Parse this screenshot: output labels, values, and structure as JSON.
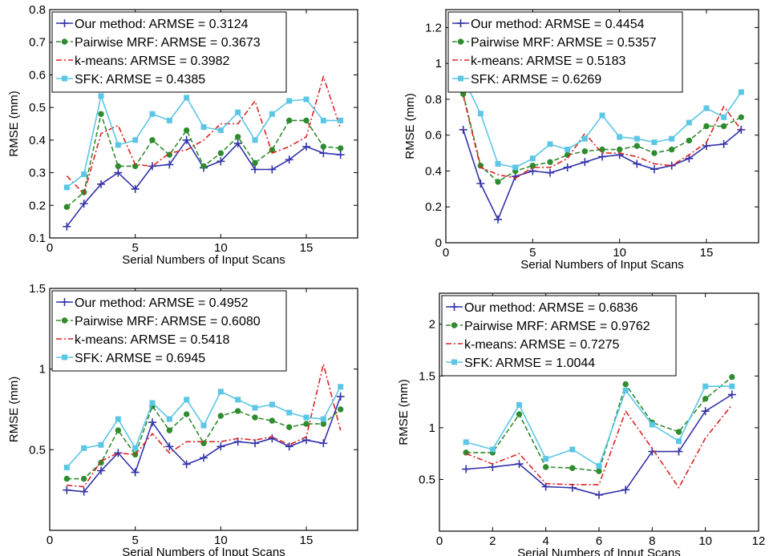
{
  "chart_data": [
    {
      "type": "line",
      "xlabel": "Serial Numbers of Input Scans",
      "ylabel": "RMSE (mm)",
      "xlim": [
        0,
        18
      ],
      "ylim": [
        0.1,
        0.8
      ],
      "xticks": [
        0,
        5,
        10,
        15
      ],
      "yticks": [
        0.1,
        0.2,
        0.3,
        0.4,
        0.5,
        0.6,
        0.7,
        0.8
      ],
      "ytick_labels": [
        "0.1",
        "0.2",
        "0.3",
        "0.4",
        "0.5",
        "0.6",
        "0.7",
        "0.8"
      ],
      "grid": false,
      "legend_position": "top-left",
      "x": [
        1,
        2,
        3,
        4,
        5,
        6,
        7,
        8,
        9,
        10,
        11,
        12,
        13,
        14,
        15,
        16,
        17
      ],
      "series": [
        {
          "name": "Our method",
          "legend": "Our method: ARMSE = 0.3124",
          "color": "#3333aa",
          "marker": "plus",
          "dash": "solid",
          "values": [
            0.135,
            0.205,
            0.265,
            0.3,
            0.25,
            0.32,
            0.325,
            0.4,
            0.315,
            0.335,
            0.39,
            0.31,
            0.31,
            0.34,
            0.38,
            0.36,
            0.355
          ]
        },
        {
          "name": "Pairwise MRF",
          "legend": "Pairwise MRF: ARMSE = 0.3673",
          "color": "#2e8b2e",
          "marker": "dot",
          "dash": "dashed",
          "values": [
            0.195,
            0.24,
            0.48,
            0.32,
            0.32,
            0.4,
            0.355,
            0.43,
            0.32,
            0.36,
            0.41,
            0.33,
            0.37,
            0.46,
            0.46,
            0.38,
            0.375
          ]
        },
        {
          "name": "k-means",
          "legend": "k-means: ARMSE = 0.3982",
          "color": "#dd2222",
          "marker": "none",
          "dash": "dashdot",
          "values": [
            0.29,
            0.235,
            0.42,
            0.445,
            0.325,
            0.32,
            0.36,
            0.37,
            0.4,
            0.45,
            0.45,
            0.52,
            0.36,
            0.38,
            0.41,
            0.595,
            0.435
          ]
        },
        {
          "name": "SFK",
          "legend": "SFK: ARMSE = 0.4385",
          "color": "#5cc6e6",
          "marker": "square",
          "dash": "solid",
          "values": [
            0.255,
            0.295,
            0.535,
            0.385,
            0.4,
            0.48,
            0.46,
            0.53,
            0.44,
            0.43,
            0.485,
            0.4,
            0.48,
            0.52,
            0.525,
            0.46,
            0.46
          ]
        }
      ]
    },
    {
      "type": "line",
      "xlabel": "Serial Numbers of Input Scans",
      "ylabel": "RMSE (mm)",
      "xlim": [
        0,
        18
      ],
      "ylim": [
        0,
        1.3
      ],
      "xticks": [
        0,
        5,
        10,
        15
      ],
      "yticks": [
        0,
        0.2,
        0.4,
        0.6,
        0.8,
        1.0,
        1.2
      ],
      "ytick_labels": [
        "0",
        "0.2",
        "0.4",
        "0.6",
        "0.8",
        "1",
        "1.2"
      ],
      "grid": false,
      "legend_position": "top-left",
      "x": [
        1,
        2,
        3,
        4,
        5,
        6,
        7,
        8,
        9,
        10,
        11,
        12,
        13,
        14,
        15,
        16,
        17
      ],
      "series": [
        {
          "name": "Our method",
          "legend": "Our method:  ARMSE = 0.4454",
          "color": "#3333aa",
          "marker": "plus",
          "dash": "solid",
          "values": [
            0.63,
            0.33,
            0.13,
            0.37,
            0.4,
            0.39,
            0.42,
            0.45,
            0.48,
            0.49,
            0.44,
            0.41,
            0.43,
            0.47,
            0.54,
            0.55,
            0.63
          ]
        },
        {
          "name": "Pairwise MRF",
          "legend": "Pairwise MRF: ARMSE = 0.5357",
          "color": "#2e8b2e",
          "marker": "dot",
          "dash": "dashed",
          "values": [
            0.83,
            0.43,
            0.34,
            0.4,
            0.43,
            0.45,
            0.49,
            0.51,
            0.52,
            0.52,
            0.54,
            0.5,
            0.52,
            0.57,
            0.65,
            0.65,
            0.7
          ]
        },
        {
          "name": "k-means",
          "legend": "k-means: ARMSE = 0.5183",
          "color": "#dd2222",
          "marker": "none",
          "dash": "dashdot",
          "values": [
            0.82,
            0.42,
            0.38,
            0.36,
            0.42,
            0.42,
            0.47,
            0.61,
            0.5,
            0.5,
            0.48,
            0.44,
            0.43,
            0.49,
            0.56,
            0.76,
            0.63
          ]
        },
        {
          "name": "SFK",
          "legend": "SFK: ARMSE = 0.6269",
          "color": "#5cc6e6",
          "marker": "square",
          "dash": "solid",
          "values": [
            0.92,
            0.72,
            0.44,
            0.42,
            0.47,
            0.55,
            0.52,
            0.58,
            0.71,
            0.59,
            0.58,
            0.56,
            0.58,
            0.67,
            0.75,
            0.7,
            0.84
          ]
        }
      ]
    },
    {
      "type": "line",
      "xlabel": "Serial Numbers of Input Scans",
      "ylabel": "RMSE (mm)",
      "xlim": [
        0,
        18
      ],
      "ylim": [
        0,
        1.5
      ],
      "xticks": [
        0,
        5,
        10,
        15
      ],
      "yticks": [
        0.5,
        1.0,
        1.5
      ],
      "ytick_labels": [
        "0.5",
        "1",
        "1.5"
      ],
      "grid": false,
      "legend_position": "top-left",
      "x": [
        1,
        2,
        3,
        4,
        5,
        6,
        7,
        8,
        9,
        10,
        11,
        12,
        13,
        14,
        15,
        16,
        17
      ],
      "series": [
        {
          "name": "Our method",
          "legend": "Our method: ARMSE = 0.4952",
          "color": "#3333aa",
          "marker": "plus",
          "dash": "solid",
          "values": [
            0.25,
            0.24,
            0.37,
            0.48,
            0.36,
            0.67,
            0.52,
            0.41,
            0.45,
            0.52,
            0.55,
            0.54,
            0.57,
            0.52,
            0.56,
            0.54,
            0.83
          ]
        },
        {
          "name": "Pairwise MRF",
          "legend": "Pairwise MRF: ARMSE = 0.6080",
          "color": "#2e8b2e",
          "marker": "dot",
          "dash": "dashed",
          "values": [
            0.32,
            0.32,
            0.42,
            0.62,
            0.47,
            0.77,
            0.62,
            0.72,
            0.54,
            0.71,
            0.74,
            0.7,
            0.68,
            0.64,
            0.66,
            0.66,
            0.75
          ]
        },
        {
          "name": "k-means",
          "legend": "k-means: ARMSE = 0.5418",
          "color": "#dd2222",
          "marker": "none",
          "dash": "dashdot",
          "values": [
            0.28,
            0.27,
            0.43,
            0.48,
            0.47,
            0.6,
            0.48,
            0.55,
            0.55,
            0.55,
            0.57,
            0.56,
            0.58,
            0.53,
            0.58,
            1.03,
            0.62
          ]
        },
        {
          "name": "SFK",
          "legend": "SFK: ARMSE = 0.6945",
          "color": "#5cc6e6",
          "marker": "square",
          "dash": "solid",
          "values": [
            0.39,
            0.51,
            0.53,
            0.69,
            0.51,
            0.79,
            0.69,
            0.81,
            0.65,
            0.86,
            0.81,
            0.76,
            0.78,
            0.73,
            0.7,
            0.69,
            0.89
          ]
        }
      ]
    },
    {
      "type": "line",
      "xlabel": "Serial Numbers of Input Scans",
      "ylabel": "RMSE (mm)",
      "xlim": [
        0,
        12
      ],
      "ylim": [
        0,
        2.3
      ],
      "xticks": [
        0,
        2,
        4,
        6,
        8,
        10,
        12
      ],
      "yticks": [
        0.5,
        1.0,
        1.5,
        2.0
      ],
      "ytick_labels": [
        "0.5",
        "1",
        "1.5",
        "2"
      ],
      "grid": false,
      "legend_position": "top-left",
      "x": [
        1,
        2,
        3,
        4,
        5,
        6,
        7,
        8,
        9,
        10,
        11
      ],
      "series": [
        {
          "name": "Our method",
          "legend": "Our method: ARMSE = 0.6836",
          "color": "#3333aa",
          "marker": "plus",
          "dash": "solid",
          "values": [
            0.6,
            0.62,
            0.65,
            0.43,
            0.42,
            0.35,
            0.4,
            0.77,
            0.77,
            1.16,
            1.32
          ]
        },
        {
          "name": "Pairwise MRF",
          "legend": "Pairwise MRF: ARMSE = 0.9762",
          "color": "#2e8b2e",
          "marker": "dot",
          "dash": "dashed",
          "values": [
            0.76,
            0.76,
            1.13,
            0.62,
            0.61,
            0.58,
            1.42,
            1.05,
            0.96,
            1.28,
            1.49
          ]
        },
        {
          "name": "k-means",
          "legend": "k-means: ARMSE = 0.7275",
          "color": "#dd2222",
          "marker": "none",
          "dash": "dashdot",
          "values": [
            0.75,
            0.65,
            0.75,
            0.46,
            0.45,
            0.45,
            1.16,
            0.8,
            0.42,
            0.9,
            1.22
          ]
        },
        {
          "name": "SFK",
          "legend": "SFK: ARMSE = 1.0044",
          "color": "#5cc6e6",
          "marker": "square",
          "dash": "solid",
          "values": [
            0.86,
            0.79,
            1.22,
            0.7,
            0.79,
            0.63,
            1.36,
            1.03,
            0.87,
            1.4,
            1.4
          ]
        }
      ]
    }
  ]
}
